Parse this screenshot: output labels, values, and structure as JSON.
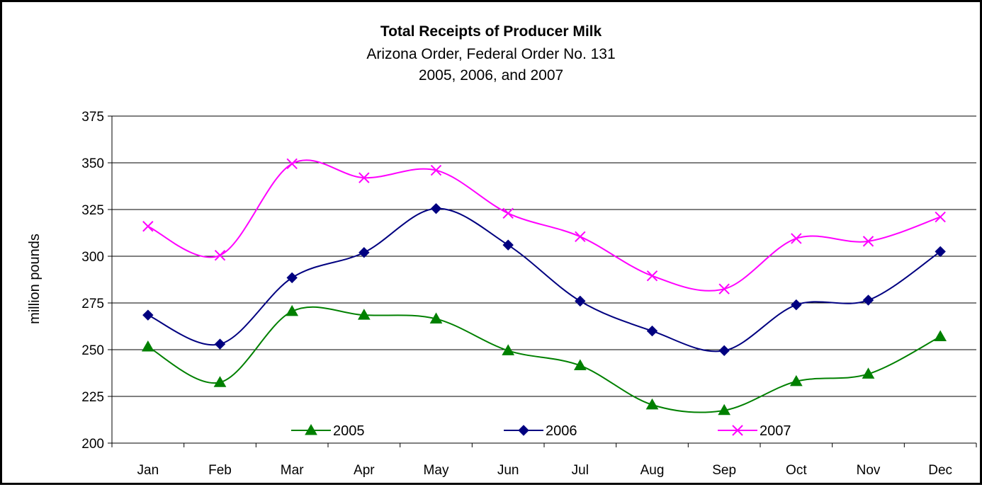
{
  "chart_data": {
    "type": "line",
    "title": "Total Receipts of Producer Milk",
    "subtitle_lines": [
      "Arizona Order, Federal Order No. 131",
      "2005, 2006, and 2007"
    ],
    "xlabel": "",
    "ylabel": "million pounds",
    "categories": [
      "Jan",
      "Feb",
      "Mar",
      "Apr",
      "May",
      "Jun",
      "Jul",
      "Aug",
      "Sep",
      "Oct",
      "Nov",
      "Dec"
    ],
    "ylim": [
      200,
      375
    ],
    "yticks": [
      200,
      225,
      250,
      275,
      300,
      325,
      350,
      375
    ],
    "grid": true,
    "legend_position": "bottom",
    "series": [
      {
        "name": "2005",
        "color": "#008000",
        "marker": "triangle",
        "values": [
          251.5,
          232.5,
          270.5,
          268.5,
          266.5,
          249.5,
          241.5,
          220.5,
          217.5,
          233.0,
          237.0,
          257.0
        ]
      },
      {
        "name": "2006",
        "color": "#000080",
        "marker": "diamond",
        "values": [
          268.5,
          253.0,
          288.5,
          302.0,
          325.5,
          306.0,
          276.0,
          260.0,
          249.5,
          274.0,
          276.5,
          302.5
        ]
      },
      {
        "name": "2007",
        "color": "#FF00FF",
        "marker": "x",
        "values": [
          316.0,
          300.5,
          349.5,
          342.0,
          346.0,
          323.0,
          310.5,
          289.5,
          282.5,
          309.5,
          308.0,
          321.0
        ]
      }
    ]
  }
}
